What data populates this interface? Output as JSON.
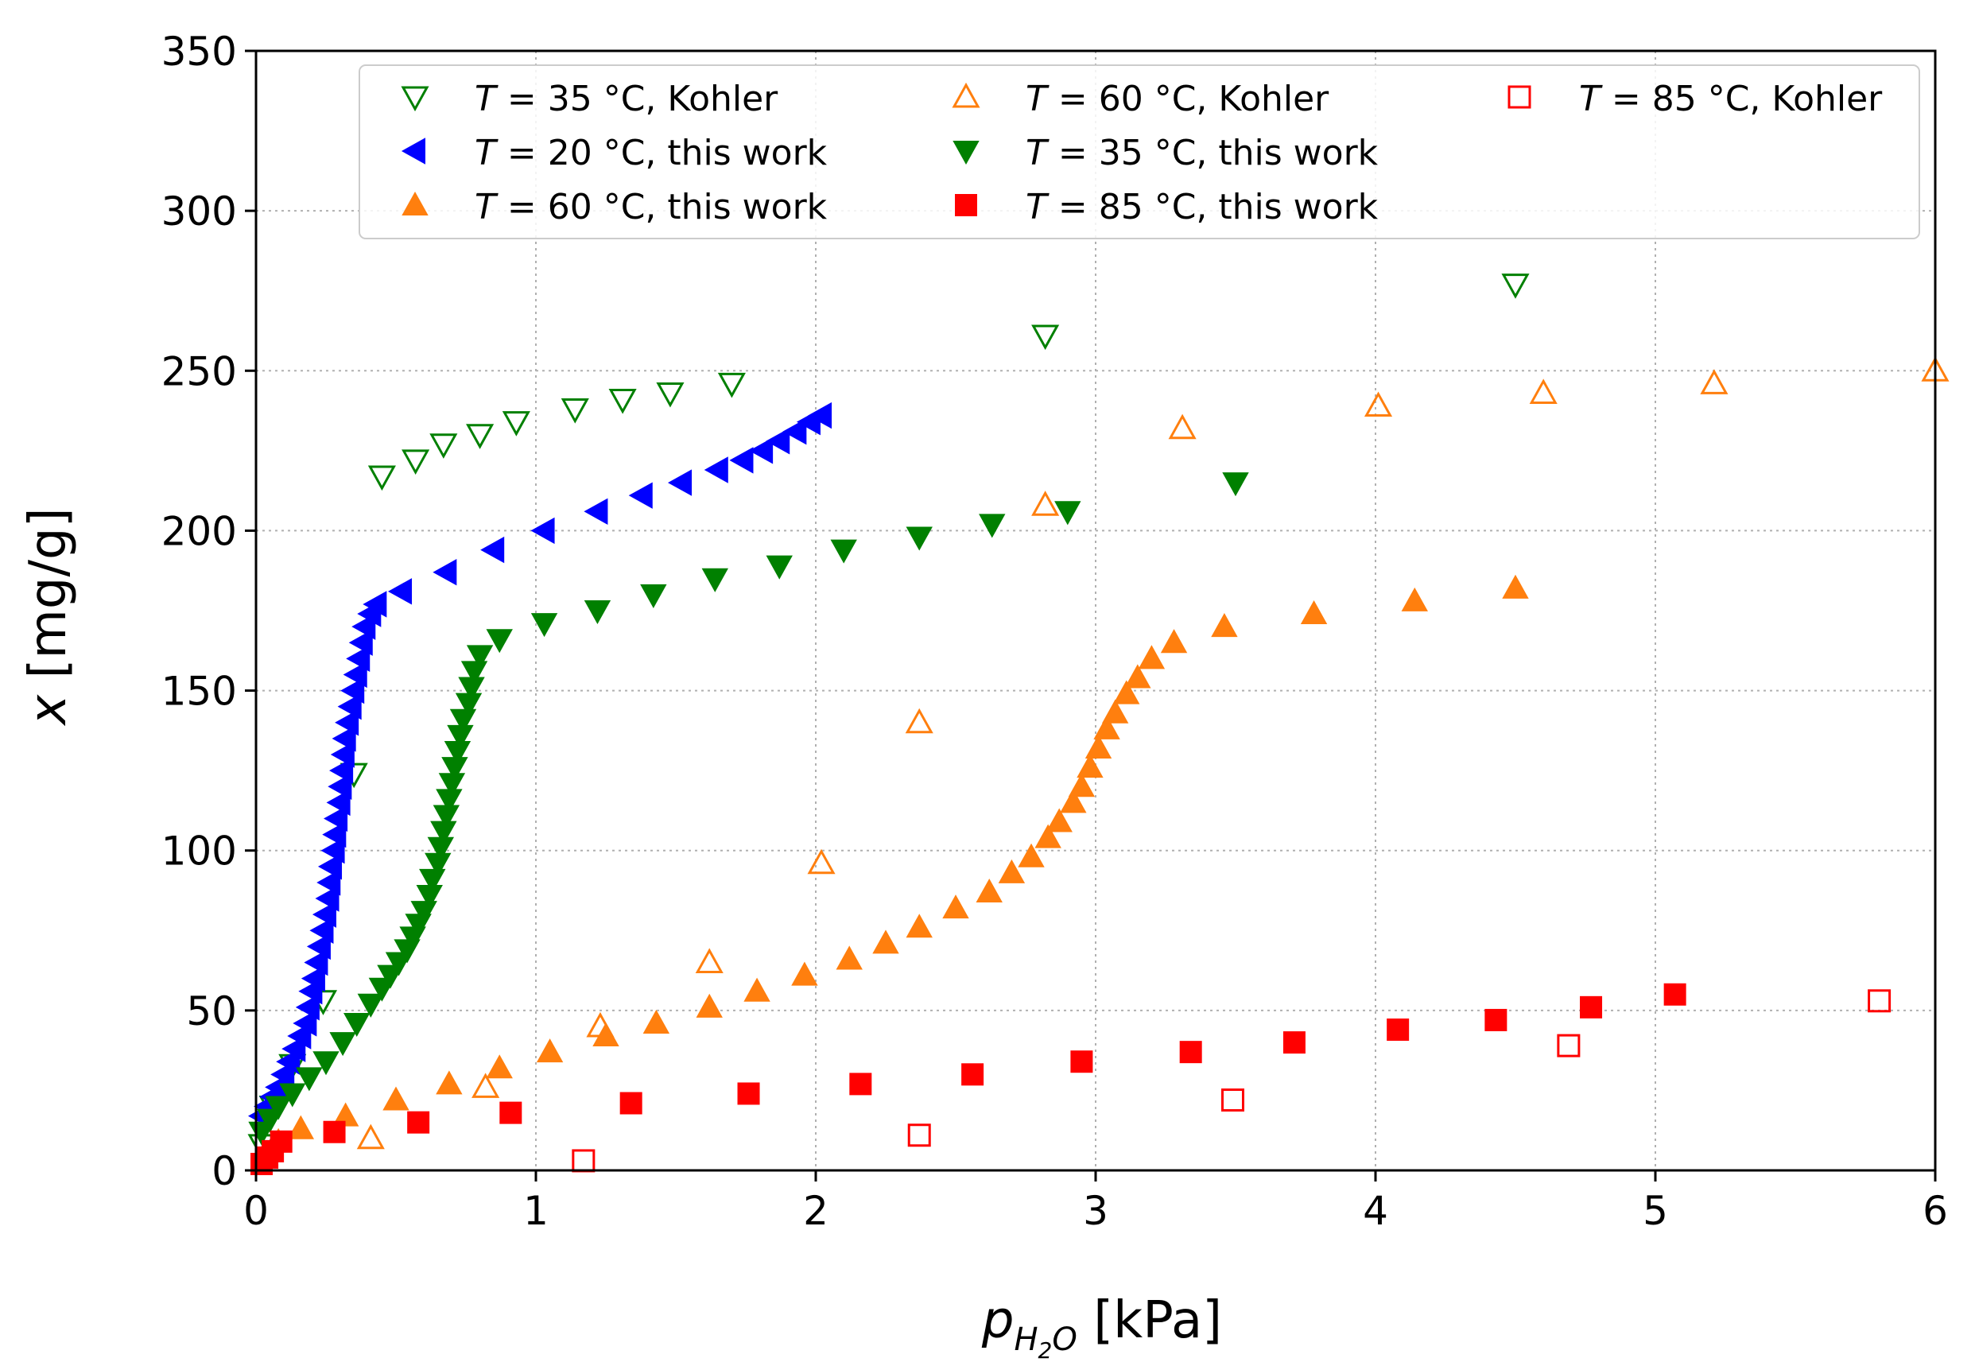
{
  "chart_data": {
    "type": "scatter",
    "title": "",
    "xlabel": {
      "var": "p",
      "sub": "H",
      "sub2": "2",
      "sub3": "O",
      "unit": " [kPa]"
    },
    "ylabel": {
      "var": "x",
      "unit": " [mg/g]"
    },
    "xlim": [
      0,
      6
    ],
    "ylim": [
      0,
      350
    ],
    "xticks": [
      0,
      1,
      2,
      3,
      4,
      5,
      6
    ],
    "yticks": [
      0,
      50,
      100,
      150,
      200,
      250,
      300,
      350
    ],
    "grid": true,
    "legend_position": "top",
    "series": [
      {
        "name": "T = 35 °C, Kohler",
        "label_prefix": "T",
        "label_rest": " = 35 °C, Kohler",
        "marker": "triangle-down",
        "filled": false,
        "color": "#008000",
        "points": [
          [
            0.02,
            8
          ],
          [
            0.06,
            20
          ],
          [
            0.13,
            33
          ],
          [
            0.24,
            53
          ],
          [
            0.35,
            124
          ],
          [
            0.45,
            217
          ],
          [
            0.57,
            222
          ],
          [
            0.67,
            227
          ],
          [
            0.8,
            230
          ],
          [
            0.93,
            234
          ],
          [
            1.14,
            238
          ],
          [
            1.31,
            241
          ],
          [
            1.48,
            243
          ],
          [
            1.7,
            246
          ],
          [
            2.82,
            261
          ],
          [
            4.5,
            277
          ]
        ]
      },
      {
        "name": "T = 60 °C, Kohler",
        "label_prefix": "T",
        "label_rest": " = 60 °C, Kohler",
        "marker": "triangle-up",
        "filled": false,
        "color": "#ff7f0e",
        "points": [
          [
            0.41,
            10
          ],
          [
            0.82,
            26
          ],
          [
            1.23,
            45
          ],
          [
            1.62,
            65
          ],
          [
            2.02,
            96
          ],
          [
            2.37,
            140
          ],
          [
            2.82,
            208
          ],
          [
            3.31,
            232
          ],
          [
            4.01,
            239
          ],
          [
            4.6,
            243
          ],
          [
            5.21,
            246
          ],
          [
            6.0,
            250
          ]
        ]
      },
      {
        "name": "T = 85 °C, Kohler",
        "label_prefix": "T",
        "label_rest": " = 85 °C, Kohler",
        "marker": "square",
        "filled": false,
        "color": "#ff0000",
        "points": [
          [
            1.17,
            3
          ],
          [
            2.37,
            11
          ],
          [
            3.49,
            22
          ],
          [
            4.69,
            39
          ],
          [
            5.8,
            53
          ]
        ]
      },
      {
        "name": "T = 20 °C, this work",
        "label_prefix": "T",
        "label_rest": " = 20 °C, this work",
        "marker": "triangle-left",
        "filled": true,
        "color": "#0000ff",
        "points": [
          [
            0.02,
            17
          ],
          [
            0.04,
            20
          ],
          [
            0.06,
            23
          ],
          [
            0.08,
            26
          ],
          [
            0.1,
            30
          ],
          [
            0.12,
            34
          ],
          [
            0.14,
            38
          ],
          [
            0.16,
            42
          ],
          [
            0.18,
            46
          ],
          [
            0.19,
            51
          ],
          [
            0.2,
            56
          ],
          [
            0.21,
            60
          ],
          [
            0.22,
            65
          ],
          [
            0.23,
            70
          ],
          [
            0.24,
            75
          ],
          [
            0.25,
            80
          ],
          [
            0.26,
            85
          ],
          [
            0.265,
            90
          ],
          [
            0.27,
            95
          ],
          [
            0.28,
            100
          ],
          [
            0.285,
            105
          ],
          [
            0.29,
            110
          ],
          [
            0.3,
            115
          ],
          [
            0.305,
            120
          ],
          [
            0.31,
            125
          ],
          [
            0.315,
            130
          ],
          [
            0.32,
            135
          ],
          [
            0.33,
            140
          ],
          [
            0.34,
            145
          ],
          [
            0.35,
            150
          ],
          [
            0.36,
            155
          ],
          [
            0.37,
            160
          ],
          [
            0.38,
            165
          ],
          [
            0.39,
            170
          ],
          [
            0.41,
            174
          ],
          [
            0.43,
            177
          ],
          [
            0.52,
            181
          ],
          [
            0.68,
            187
          ],
          [
            0.85,
            194
          ],
          [
            1.03,
            200
          ],
          [
            1.22,
            206
          ],
          [
            1.38,
            211
          ],
          [
            1.52,
            215
          ],
          [
            1.65,
            219
          ],
          [
            1.74,
            222
          ],
          [
            1.81,
            225
          ],
          [
            1.87,
            228
          ],
          [
            1.93,
            231
          ],
          [
            1.98,
            234
          ],
          [
            2.02,
            236
          ]
        ]
      },
      {
        "name": "T = 35 °C, this work",
        "label_prefix": "T",
        "label_rest": " = 35 °C, this work",
        "marker": "triangle-down",
        "filled": true,
        "color": "#008000",
        "points": [
          [
            0.02,
            12
          ],
          [
            0.05,
            16
          ],
          [
            0.08,
            20
          ],
          [
            0.13,
            24
          ],
          [
            0.19,
            29
          ],
          [
            0.25,
            34
          ],
          [
            0.31,
            40
          ],
          [
            0.36,
            46
          ],
          [
            0.41,
            52
          ],
          [
            0.45,
            57
          ],
          [
            0.48,
            61
          ],
          [
            0.51,
            65
          ],
          [
            0.54,
            69
          ],
          [
            0.56,
            73
          ],
          [
            0.58,
            77
          ],
          [
            0.6,
            81
          ],
          [
            0.62,
            86
          ],
          [
            0.63,
            91
          ],
          [
            0.65,
            96
          ],
          [
            0.66,
            101
          ],
          [
            0.67,
            106
          ],
          [
            0.68,
            111
          ],
          [
            0.69,
            116
          ],
          [
            0.7,
            121
          ],
          [
            0.71,
            126
          ],
          [
            0.72,
            131
          ],
          [
            0.73,
            136
          ],
          [
            0.74,
            141
          ],
          [
            0.76,
            146
          ],
          [
            0.77,
            151
          ],
          [
            0.78,
            156
          ],
          [
            0.8,
            161
          ],
          [
            0.87,
            166
          ],
          [
            1.03,
            171
          ],
          [
            1.22,
            175
          ],
          [
            1.42,
            180
          ],
          [
            1.64,
            185
          ],
          [
            1.87,
            189
          ],
          [
            2.1,
            194
          ],
          [
            2.37,
            198
          ],
          [
            2.63,
            202
          ],
          [
            2.9,
            206
          ],
          [
            3.5,
            215
          ]
        ]
      },
      {
        "name": "T = 60 °C, this work",
        "label_prefix": "T",
        "label_rest": " = 60 °C, this work",
        "marker": "triangle-up",
        "filled": true,
        "color": "#ff7f0e",
        "points": [
          [
            0.03,
            5
          ],
          [
            0.08,
            9
          ],
          [
            0.16,
            13
          ],
          [
            0.32,
            17
          ],
          [
            0.5,
            22
          ],
          [
            0.69,
            27
          ],
          [
            0.87,
            32
          ],
          [
            1.05,
            37
          ],
          [
            1.25,
            42
          ],
          [
            1.43,
            46
          ],
          [
            1.62,
            51
          ],
          [
            1.79,
            56
          ],
          [
            1.96,
            61
          ],
          [
            2.12,
            66
          ],
          [
            2.25,
            71
          ],
          [
            2.37,
            76
          ],
          [
            2.5,
            82
          ],
          [
            2.62,
            87
          ],
          [
            2.7,
            93
          ],
          [
            2.77,
            98
          ],
          [
            2.83,
            104
          ],
          [
            2.87,
            109
          ],
          [
            2.92,
            115
          ],
          [
            2.95,
            120
          ],
          [
            2.98,
            126
          ],
          [
            3.01,
            132
          ],
          [
            3.04,
            138
          ],
          [
            3.07,
            143
          ],
          [
            3.11,
            149
          ],
          [
            3.15,
            154
          ],
          [
            3.2,
            160
          ],
          [
            3.28,
            165
          ],
          [
            3.46,
            170
          ],
          [
            3.78,
            174
          ],
          [
            4.14,
            178
          ],
          [
            4.5,
            182
          ]
        ]
      },
      {
        "name": "T = 85 °C, this work",
        "label_prefix": "T",
        "label_rest": " = 85 °C, this work",
        "marker": "square",
        "filled": true,
        "color": "#ff0000",
        "points": [
          [
            0.02,
            2
          ],
          [
            0.04,
            4
          ],
          [
            0.06,
            6
          ],
          [
            0.09,
            9
          ],
          [
            0.28,
            12
          ],
          [
            0.58,
            15
          ],
          [
            0.91,
            18
          ],
          [
            1.34,
            21
          ],
          [
            1.76,
            24
          ],
          [
            2.16,
            27
          ],
          [
            2.56,
            30
          ],
          [
            2.95,
            34
          ],
          [
            3.34,
            37
          ],
          [
            3.71,
            40
          ],
          [
            4.08,
            44
          ],
          [
            4.43,
            47
          ],
          [
            4.77,
            51
          ],
          [
            5.07,
            55
          ]
        ]
      }
    ],
    "legend_order": [
      0,
      3,
      5,
      1,
      4,
      6,
      2
    ]
  }
}
